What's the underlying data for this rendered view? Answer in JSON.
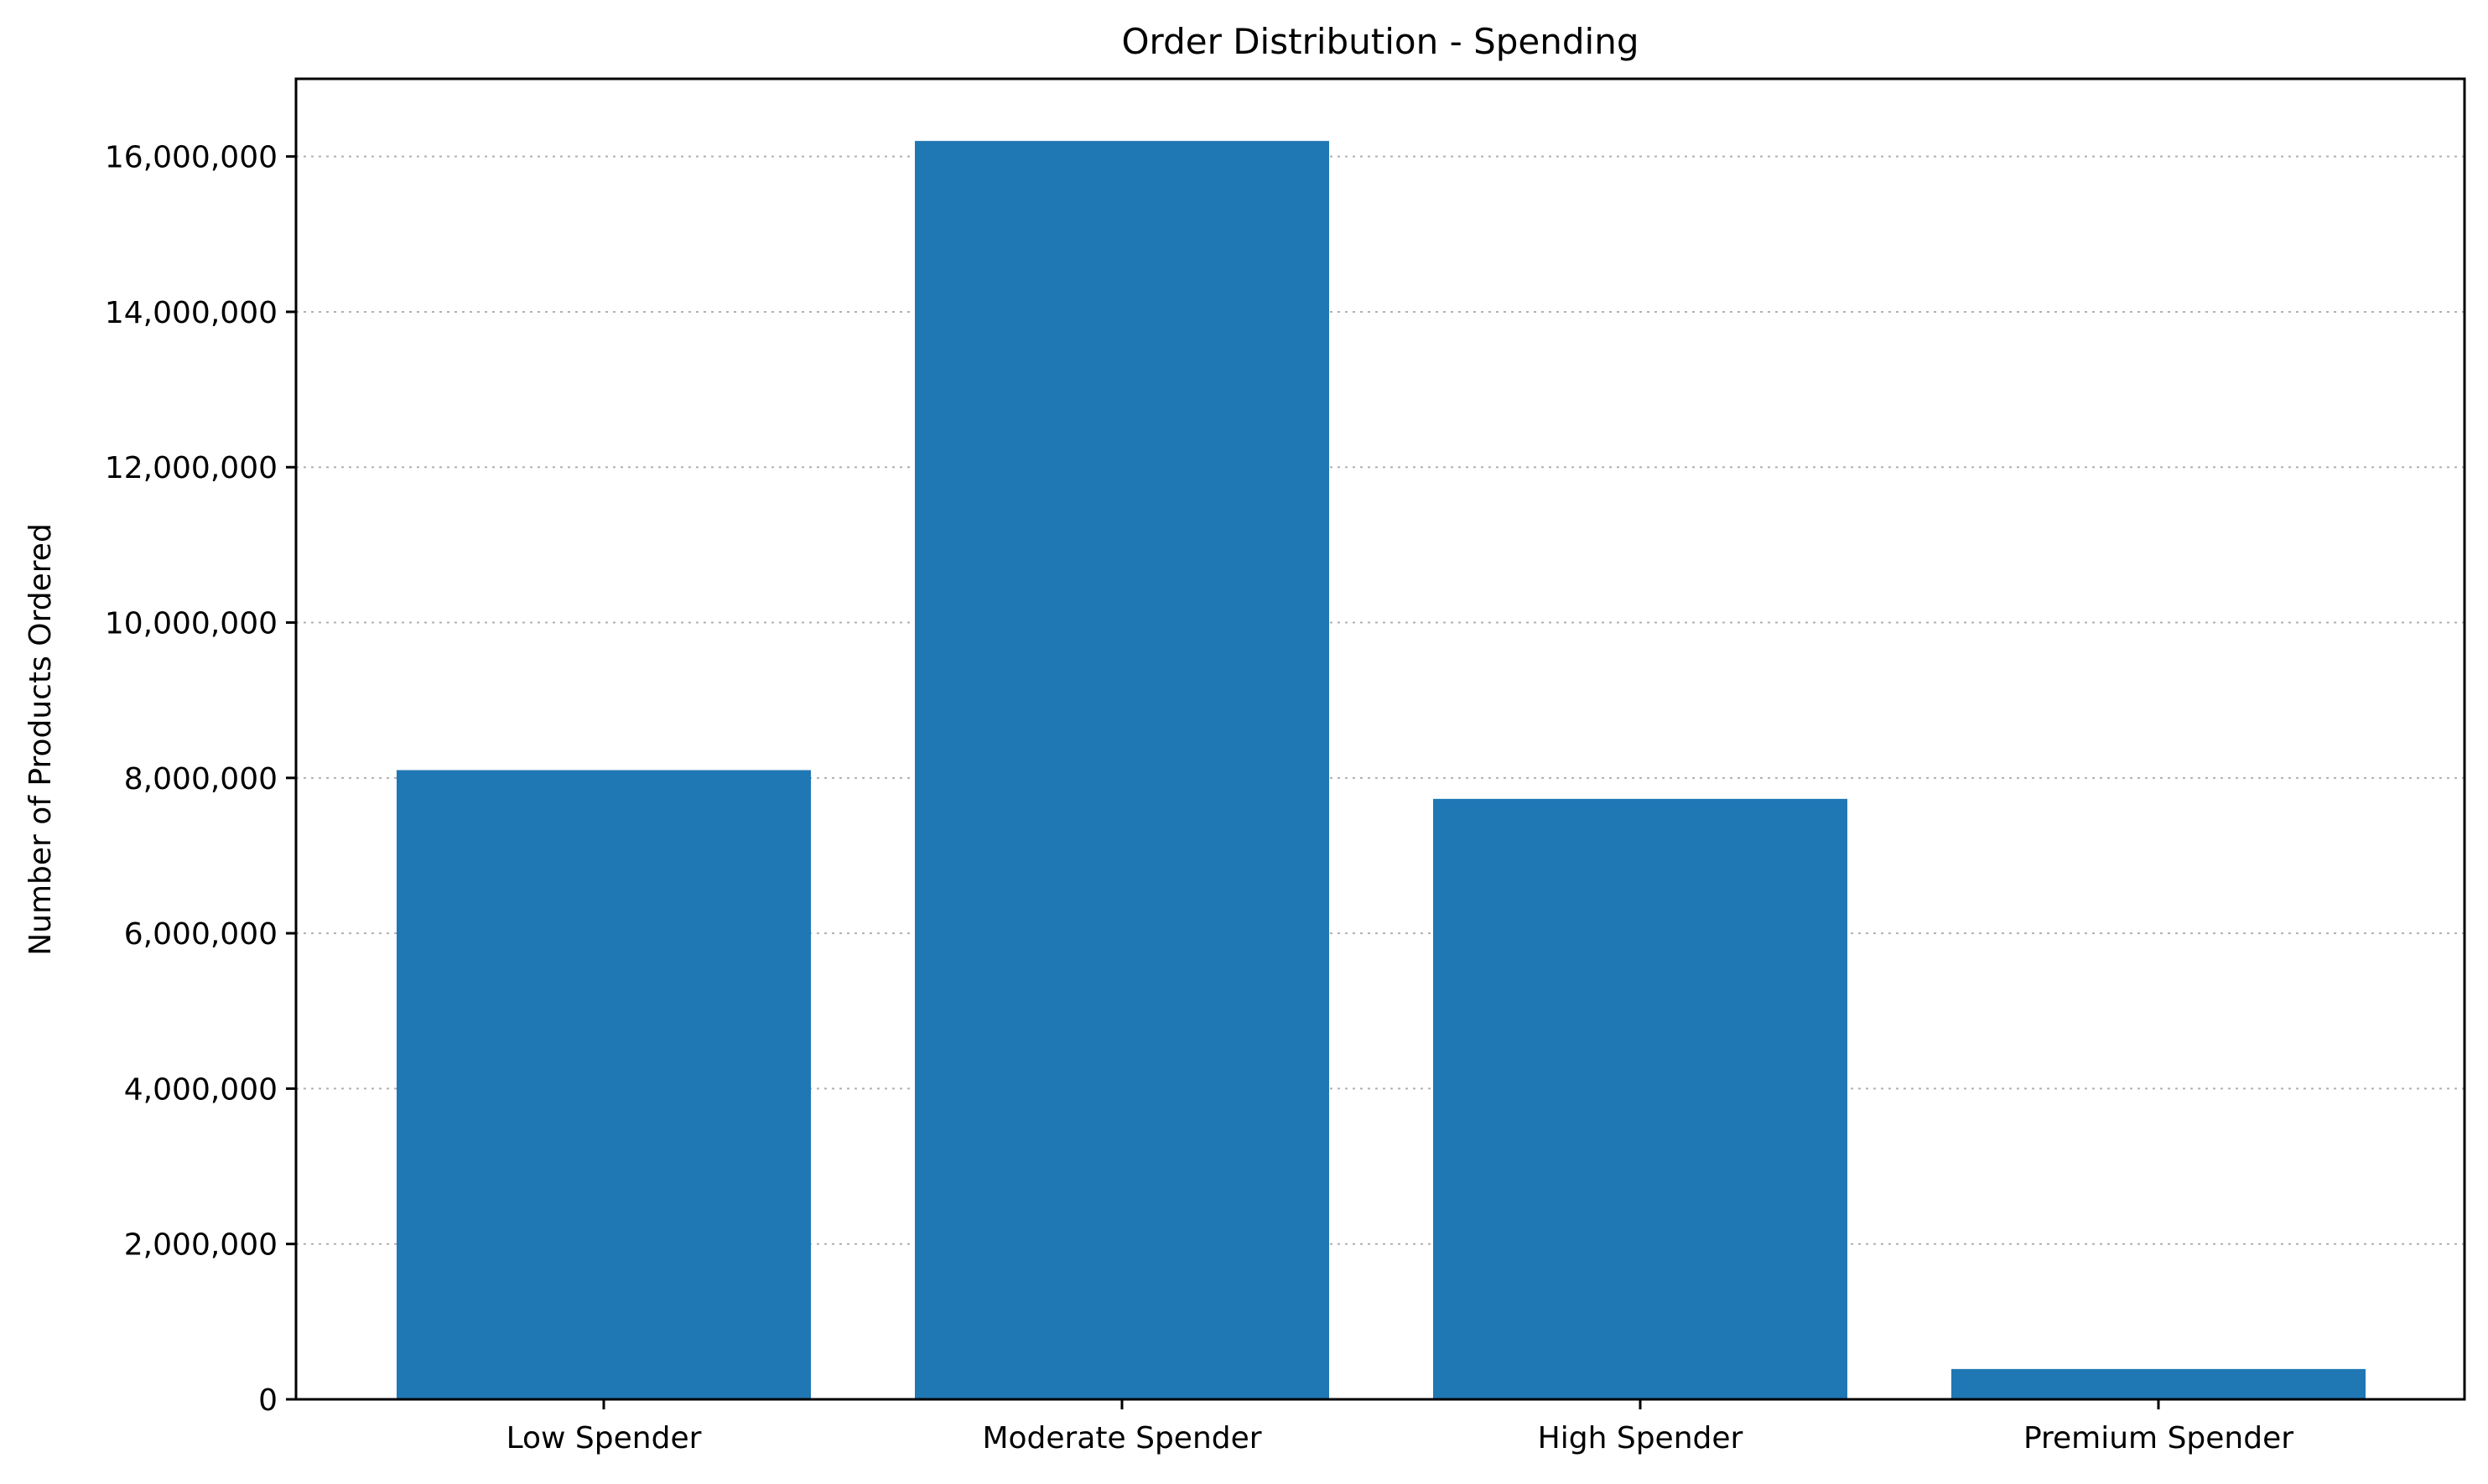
{
  "chart_data": {
    "type": "bar",
    "title": "Order Distribution - Spending",
    "xlabel": "",
    "ylabel": "Number of Products Ordered",
    "categories": [
      "Low Spender",
      "Moderate Spender",
      "High Spender",
      "Premium Spender"
    ],
    "values": [
      8100000,
      16200000,
      7730000,
      390000
    ],
    "ylim": [
      0,
      17000000
    ],
    "yticks": [
      0,
      2000000,
      4000000,
      6000000,
      8000000,
      10000000,
      12000000,
      14000000,
      16000000
    ],
    "ytick_labels": [
      "0",
      "2,000,000",
      "4,000,000",
      "6,000,000",
      "8,000,000",
      "10,000,000",
      "12,000,000",
      "14,000,000",
      "16,000,000"
    ],
    "grid": "y-dotted",
    "legend": "none",
    "bar_color": "#1f77b4"
  }
}
